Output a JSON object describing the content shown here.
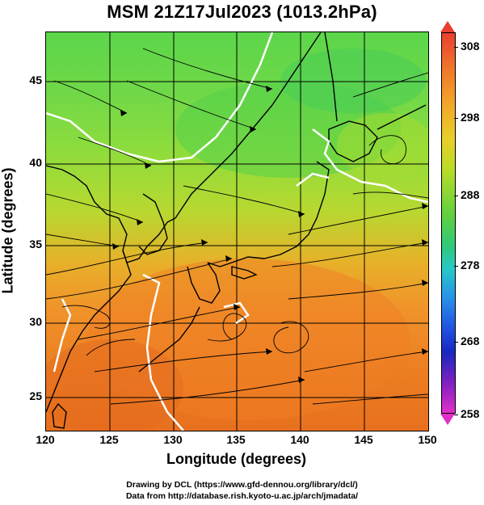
{
  "title": "MSM 21Z17Jul2023 (1013.2hPa)",
  "x_axis": {
    "label": "Longitude (degrees)",
    "ticks": [
      "120",
      "125",
      "130",
      "135",
      "140",
      "145",
      "150"
    ]
  },
  "y_axis": {
    "label": "Latitude  (degrees)",
    "ticks": [
      "25",
      "30",
      "35",
      "40",
      "45"
    ]
  },
  "colorbar": {
    "ticks": [
      "308",
      "298",
      "288",
      "278",
      "268",
      "258"
    ],
    "top_color": "#e84030",
    "bottom_color": "#e030c8"
  },
  "credits": [
    "Drawing by DCL (https://www.gfd-dennou.org/library/dcl/)",
    "Data from http://database.rish.kyoto-u.ac.jp/arch/jmadata/"
  ],
  "colors": {
    "land_outline": "#000000",
    "contour_line": "#ffffff",
    "streamline": "#000000"
  }
}
